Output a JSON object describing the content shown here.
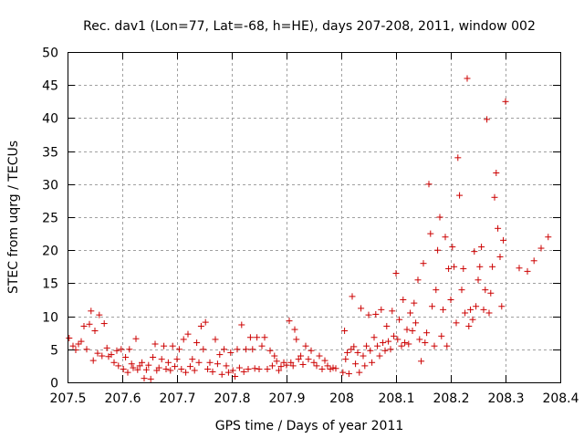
{
  "chart_data": {
    "type": "scatter",
    "title": "Rec. dav1 (Lon=77, Lat=-68, h=HE), days 207-208, 2011, window 002",
    "xlabel": "GPS time / Days of year 2011",
    "ylabel": "STEC from uqrg / TECUs",
    "xlim": [
      207.5,
      208.4
    ],
    "ylim": [
      0,
      50
    ],
    "xticks": [
      207.5,
      207.6,
      207.7,
      207.8,
      207.9,
      208.0,
      208.1,
      208.2,
      208.3,
      208.4
    ],
    "xtick_labels": [
      "207.5",
      "207.6",
      "207.7",
      "207.8",
      "207.9",
      "208",
      "208.1",
      "208.2",
      "208.3",
      "208.4"
    ],
    "yticks": [
      0,
      5,
      10,
      15,
      20,
      25,
      30,
      35,
      40,
      45,
      50
    ],
    "ytick_labels": [
      "0",
      "5",
      "10",
      "15",
      "20",
      "25",
      "30",
      "35",
      "40",
      "45",
      "50"
    ],
    "grid": true,
    "marker": "+",
    "colors": {
      "points": "#cc0000",
      "grid": "#a0a0a0",
      "axis": "#000000"
    },
    "series": [
      {
        "name": "STEC",
        "points": [
          [
            207.503,
            6.7
          ],
          [
            207.51,
            5.5
          ],
          [
            207.515,
            4.9
          ],
          [
            207.52,
            5.8
          ],
          [
            207.525,
            6.2
          ],
          [
            207.53,
            8.5
          ],
          [
            207.535,
            5.0
          ],
          [
            207.54,
            8.8
          ],
          [
            207.543,
            10.8
          ],
          [
            207.547,
            3.3
          ],
          [
            207.55,
            7.8
          ],
          [
            207.555,
            4.4
          ],
          [
            207.558,
            10.2
          ],
          [
            207.563,
            4.0
          ],
          [
            207.567,
            8.9
          ],
          [
            207.572,
            5.2
          ],
          [
            207.575,
            3.9
          ],
          [
            207.58,
            4.2
          ],
          [
            207.585,
            3.0
          ],
          [
            207.59,
            4.8
          ],
          [
            207.593,
            2.5
          ],
          [
            207.598,
            5.0
          ],
          [
            207.602,
            2.0
          ],
          [
            207.606,
            3.8
          ],
          [
            207.61,
            1.5
          ],
          [
            207.613,
            5.0
          ],
          [
            207.617,
            2.8
          ],
          [
            207.62,
            2.2
          ],
          [
            207.625,
            6.6
          ],
          [
            207.628,
            1.9
          ],
          [
            207.632,
            2.5
          ],
          [
            207.636,
            3.0
          ],
          [
            207.64,
            0.6
          ],
          [
            207.644,
            1.9
          ],
          [
            207.648,
            2.6
          ],
          [
            207.652,
            0.5
          ],
          [
            207.656,
            3.8
          ],
          [
            207.66,
            5.8
          ],
          [
            207.663,
            1.8
          ],
          [
            207.667,
            2.2
          ],
          [
            207.672,
            3.5
          ],
          [
            207.676,
            5.5
          ],
          [
            207.68,
            2.0
          ],
          [
            207.684,
            3.0
          ],
          [
            207.688,
            1.8
          ],
          [
            207.692,
            5.5
          ],
          [
            207.696,
            2.4
          ],
          [
            207.7,
            3.5
          ],
          [
            207.704,
            5.0
          ],
          [
            207.708,
            2.0
          ],
          [
            207.712,
            6.5
          ],
          [
            207.716,
            1.5
          ],
          [
            207.72,
            7.3
          ],
          [
            207.724,
            2.4
          ],
          [
            207.728,
            3.5
          ],
          [
            207.732,
            1.8
          ],
          [
            207.736,
            6.0
          ],
          [
            207.74,
            3.0
          ],
          [
            207.744,
            8.5
          ],
          [
            207.748,
            5.0
          ],
          [
            207.752,
            9.1
          ],
          [
            207.756,
            2.0
          ],
          [
            207.76,
            3.0
          ],
          [
            207.765,
            1.6
          ],
          [
            207.77,
            6.5
          ],
          [
            207.774,
            2.8
          ],
          [
            207.778,
            4.2
          ],
          [
            207.782,
            1.2
          ],
          [
            207.786,
            5.0
          ],
          [
            207.79,
            2.5
          ],
          [
            207.794,
            1.5
          ],
          [
            207.798,
            4.5
          ],
          [
            207.802,
            1.8
          ],
          [
            207.806,
            0.9
          ],
          [
            207.81,
            5.0
          ],
          [
            207.814,
            2.2
          ],
          [
            207.818,
            8.7
          ],
          [
            207.822,
            1.6
          ],
          [
            207.826,
            5.0
          ],
          [
            207.83,
            2.0
          ],
          [
            207.834,
            6.8
          ],
          [
            207.838,
            5.0
          ],
          [
            207.842,
            2.1
          ],
          [
            207.846,
            6.8
          ],
          [
            207.85,
            2.0
          ],
          [
            207.855,
            5.5
          ],
          [
            207.86,
            6.8
          ],
          [
            207.865,
            2.0
          ],
          [
            207.87,
            4.8
          ],
          [
            207.874,
            2.5
          ],
          [
            207.878,
            4.0
          ],
          [
            207.882,
            3.2
          ],
          [
            207.886,
            1.8
          ],
          [
            207.89,
            2.4
          ],
          [
            207.895,
            3.0
          ],
          [
            207.9,
            2.6
          ],
          [
            207.905,
            9.3
          ],
          [
            207.908,
            3.0
          ],
          [
            207.912,
            2.5
          ],
          [
            207.915,
            8.0
          ],
          [
            207.918,
            6.5
          ],
          [
            207.922,
            3.5
          ],
          [
            207.926,
            4.0
          ],
          [
            207.93,
            2.7
          ],
          [
            207.935,
            5.5
          ],
          [
            207.94,
            3.5
          ],
          [
            207.945,
            4.8
          ],
          [
            207.95,
            3.0
          ],
          [
            207.955,
            2.5
          ],
          [
            207.96,
            4.0
          ],
          [
            207.965,
            2.0
          ],
          [
            207.97,
            3.3
          ],
          [
            207.975,
            2.5
          ],
          [
            207.98,
            2.0
          ],
          [
            207.985,
            2.2
          ],
          [
            207.99,
            2.1
          ],
          [
            208.003,
            1.5
          ],
          [
            208.006,
            7.8
          ],
          [
            208.008,
            3.5
          ],
          [
            208.011,
            4.5
          ],
          [
            208.014,
            1.3
          ],
          [
            208.018,
            5.0
          ],
          [
            208.02,
            13.0
          ],
          [
            208.023,
            5.4
          ],
          [
            208.026,
            2.8
          ],
          [
            208.03,
            4.5
          ],
          [
            208.033,
            1.5
          ],
          [
            208.036,
            11.2
          ],
          [
            208.04,
            4.0
          ],
          [
            208.043,
            2.5
          ],
          [
            208.046,
            5.5
          ],
          [
            208.05,
            10.2
          ],
          [
            208.053,
            4.8
          ],
          [
            208.056,
            3.0
          ],
          [
            208.06,
            6.8
          ],
          [
            208.063,
            10.3
          ],
          [
            208.066,
            5.5
          ],
          [
            208.07,
            4.0
          ],
          [
            208.073,
            11.0
          ],
          [
            208.076,
            6.0
          ],
          [
            208.08,
            4.8
          ],
          [
            208.083,
            8.5
          ],
          [
            208.086,
            6.2
          ],
          [
            208.09,
            5.0
          ],
          [
            208.093,
            10.8
          ],
          [
            208.096,
            7.0
          ],
          [
            208.1,
            16.5
          ],
          [
            208.103,
            6.5
          ],
          [
            208.106,
            9.5
          ],
          [
            208.11,
            5.5
          ],
          [
            208.113,
            12.5
          ],
          [
            208.116,
            6.0
          ],
          [
            208.12,
            8.0
          ],
          [
            208.123,
            5.8
          ],
          [
            208.126,
            10.5
          ],
          [
            208.13,
            7.8
          ],
          [
            208.133,
            12.0
          ],
          [
            208.136,
            9.0
          ],
          [
            208.14,
            15.5
          ],
          [
            208.143,
            6.5
          ],
          [
            208.146,
            3.2
          ],
          [
            208.15,
            18.0
          ],
          [
            208.153,
            6.0
          ],
          [
            208.156,
            7.5
          ],
          [
            208.16,
            30.0
          ],
          [
            208.163,
            22.5
          ],
          [
            208.166,
            11.5
          ],
          [
            208.17,
            5.5
          ],
          [
            208.173,
            14.0
          ],
          [
            208.176,
            20.0
          ],
          [
            208.18,
            25.0
          ],
          [
            208.183,
            7.0
          ],
          [
            208.186,
            11.0
          ],
          [
            208.19,
            22.0
          ],
          [
            208.193,
            5.5
          ],
          [
            208.196,
            17.2
          ],
          [
            208.2,
            12.5
          ],
          [
            208.203,
            20.5
          ],
          [
            208.206,
            17.5
          ],
          [
            208.21,
            9.0
          ],
          [
            208.213,
            34.0
          ],
          [
            208.216,
            28.3
          ],
          [
            208.22,
            14.0
          ],
          [
            208.223,
            17.2
          ],
          [
            208.226,
            10.5
          ],
          [
            208.23,
            46.0
          ],
          [
            208.233,
            8.5
          ],
          [
            208.236,
            11.0
          ],
          [
            208.24,
            9.5
          ],
          [
            208.243,
            19.8
          ],
          [
            208.246,
            11.5
          ],
          [
            208.25,
            15.5
          ],
          [
            208.253,
            17.5
          ],
          [
            208.256,
            20.5
          ],
          [
            208.26,
            11.0
          ],
          [
            208.263,
            14.0
          ],
          [
            208.266,
            39.8
          ],
          [
            208.27,
            10.5
          ],
          [
            208.273,
            13.5
          ],
          [
            208.276,
            17.5
          ],
          [
            208.28,
            28.0
          ],
          [
            208.283,
            31.7
          ],
          [
            208.286,
            23.3
          ],
          [
            208.29,
            19.0
          ],
          [
            208.293,
            11.5
          ],
          [
            208.296,
            21.5
          ],
          [
            208.3,
            42.5
          ],
          [
            208.325,
            17.3
          ],
          [
            208.34,
            16.8
          ],
          [
            208.352,
            18.4
          ],
          [
            208.365,
            20.3
          ],
          [
            208.378,
            22.0
          ]
        ]
      }
    ]
  }
}
